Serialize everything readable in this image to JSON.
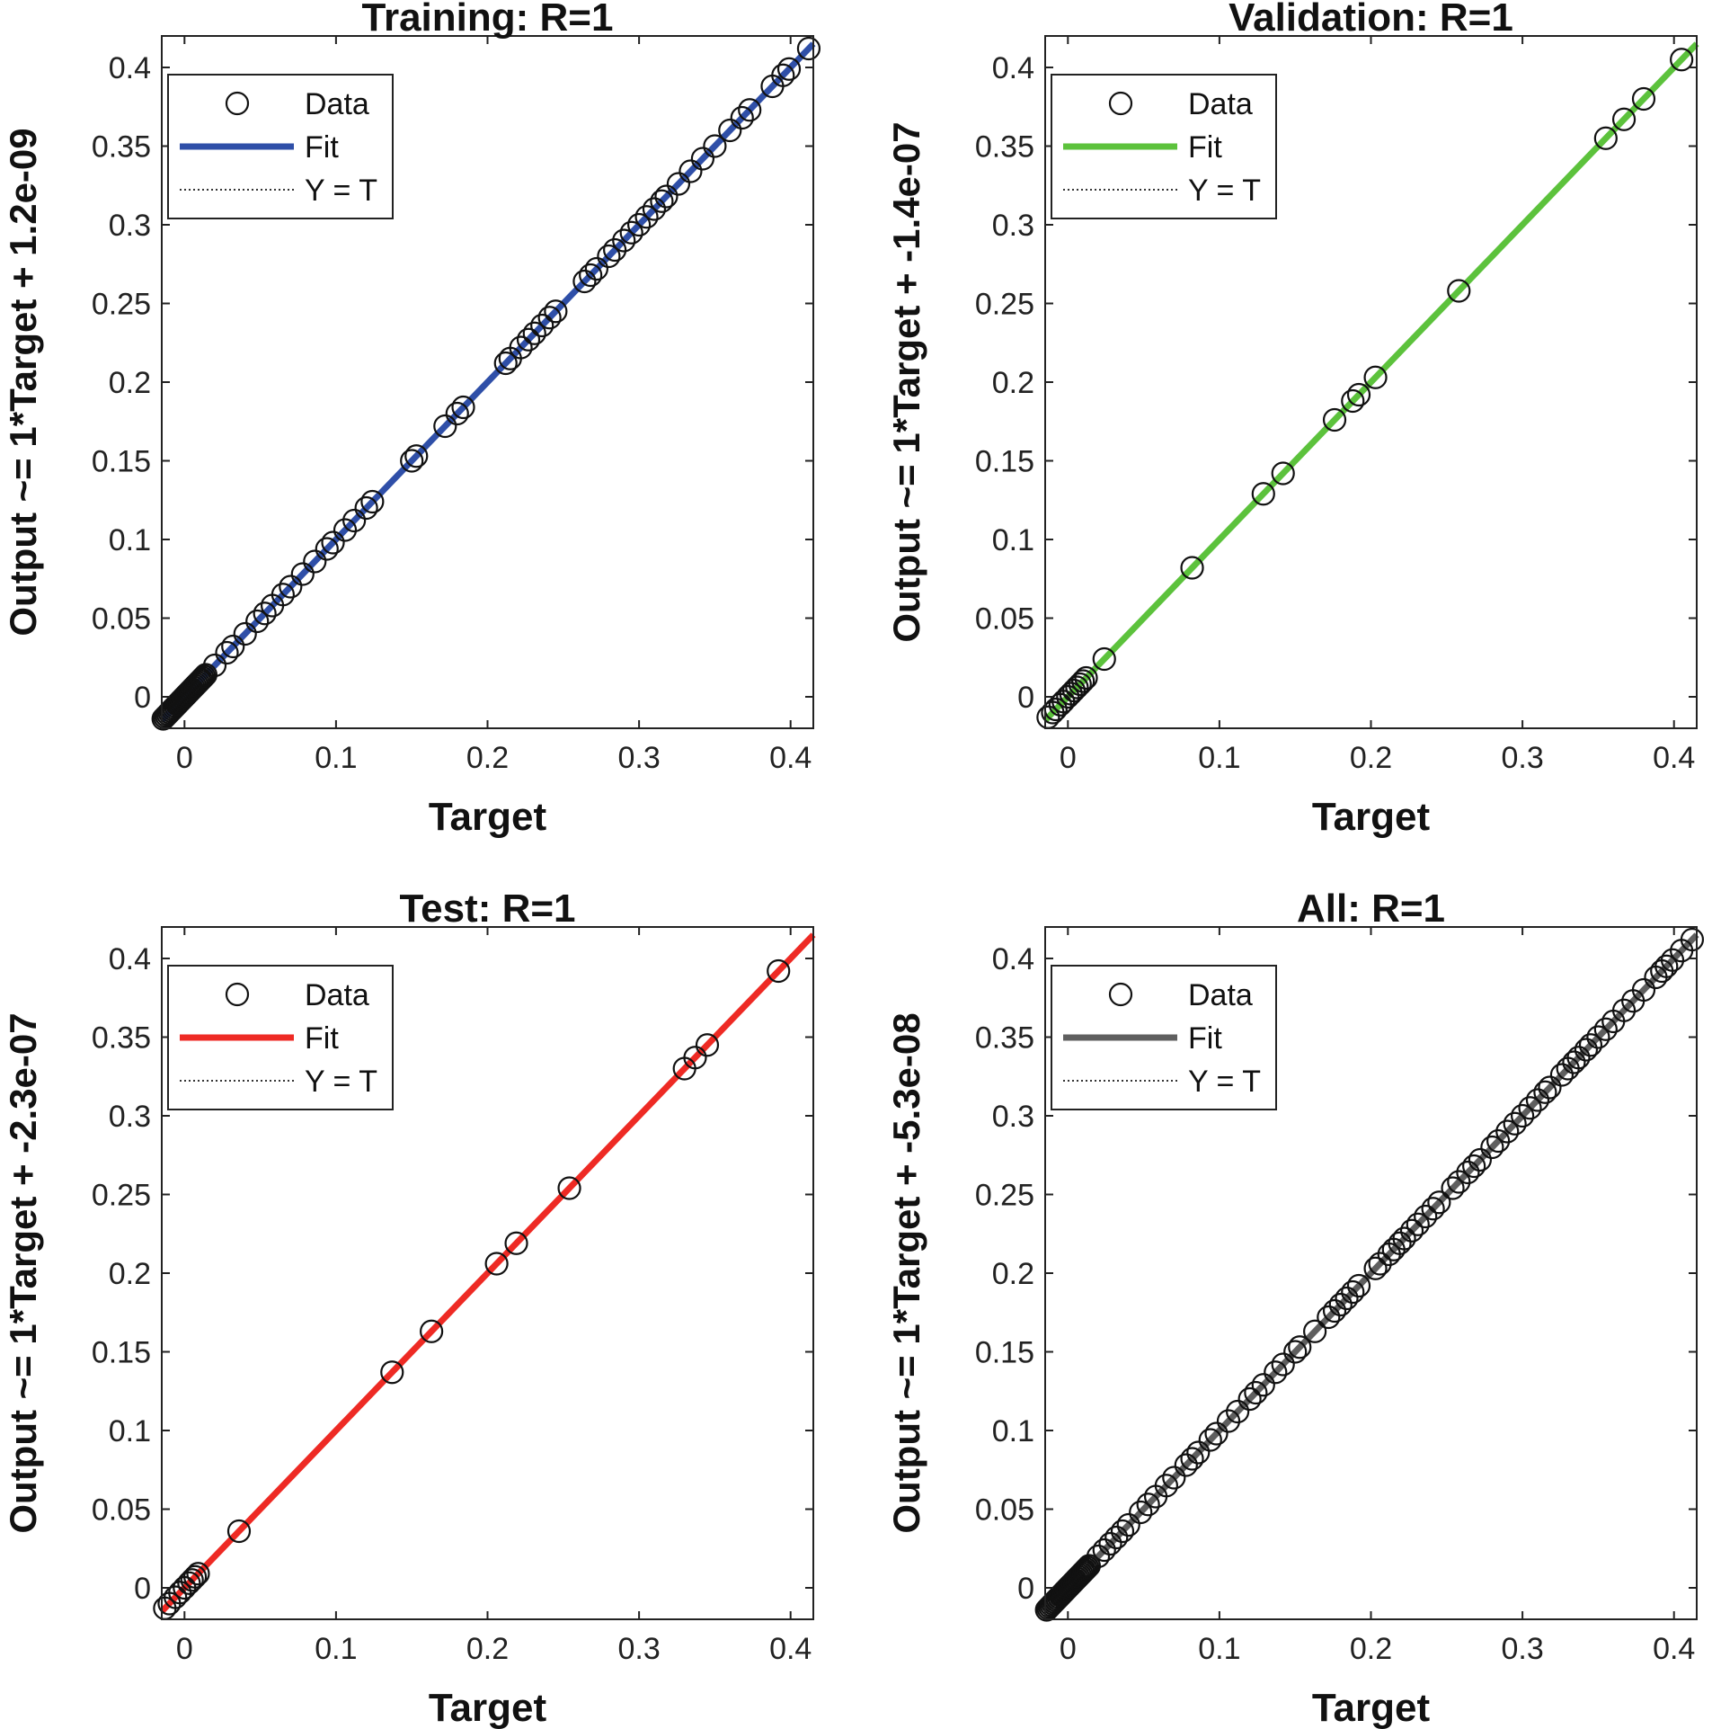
{
  "colors": {
    "training": "#2f4fa8",
    "validation": "#5cc23c",
    "test": "#ee2a24",
    "all": "#5f5f5f",
    "marker": "#111111",
    "axis": "#222222"
  },
  "legend_labels": {
    "data": "Data",
    "fit": "Fit",
    "identity": "Y = T"
  },
  "chart_data": [
    {
      "type": "scatter",
      "key": "training",
      "title": "Training: R=1",
      "xlabel": "Target",
      "ylabel": "Output ~= 1*Target + 1.2e-09",
      "xlim": [
        -0.015,
        0.415
      ],
      "ylim": [
        -0.02,
        0.42
      ],
      "xticks": [
        0,
        0.1,
        0.2,
        0.3,
        0.4
      ],
      "xtick_labels": [
        "0",
        "0.1",
        "0.2",
        "0.3",
        "0.4"
      ],
      "yticks": [
        0,
        0.05,
        0.1,
        0.15,
        0.2,
        0.25,
        0.3,
        0.35,
        0.4
      ],
      "ytick_labels": [
        "0",
        "0.05",
        "0.1",
        "0.15",
        "0.2",
        "0.25",
        "0.3",
        "0.35",
        "0.4"
      ],
      "fit": {
        "slope": 1,
        "intercept": 0
      },
      "points": [
        -0.014,
        -0.013,
        -0.012,
        -0.011,
        -0.01,
        -0.009,
        -0.008,
        -0.007,
        -0.006,
        -0.005,
        -0.004,
        -0.003,
        -0.002,
        -0.001,
        0,
        0.001,
        0.002,
        0.003,
        0.004,
        0.005,
        0.006,
        0.007,
        0.008,
        0.009,
        0.01,
        0.011,
        0.012,
        0.013,
        0.014,
        0.02,
        0.028,
        0.032,
        0.04,
        0.048,
        0.053,
        0.058,
        0.065,
        0.07,
        0.078,
        0.086,
        0.094,
        0.098,
        0.106,
        0.112,
        0.12,
        0.124,
        0.15,
        0.153,
        0.172,
        0.18,
        0.184,
        0.212,
        0.215,
        0.222,
        0.227,
        0.231,
        0.236,
        0.241,
        0.245,
        0.264,
        0.268,
        0.272,
        0.28,
        0.284,
        0.29,
        0.295,
        0.3,
        0.305,
        0.31,
        0.315,
        0.318,
        0.326,
        0.334,
        0.342,
        0.35,
        0.36,
        0.368,
        0.373,
        0.388,
        0.395,
        0.399,
        0.412
      ]
    },
    {
      "type": "scatter",
      "key": "validation",
      "title": "Validation: R=1",
      "xlabel": "Target",
      "ylabel": "Output ~= 1*Target + -1.4e-07",
      "xlim": [
        -0.015,
        0.415
      ],
      "ylim": [
        -0.02,
        0.42
      ],
      "xticks": [
        0,
        0.1,
        0.2,
        0.3,
        0.4
      ],
      "xtick_labels": [
        "0",
        "0.1",
        "0.2",
        "0.3",
        "0.4"
      ],
      "yticks": [
        0,
        0.05,
        0.1,
        0.15,
        0.2,
        0.25,
        0.3,
        0.35,
        0.4
      ],
      "ytick_labels": [
        "0",
        "0.05",
        "0.1",
        "0.15",
        "0.2",
        "0.25",
        "0.3",
        "0.35",
        "0.4"
      ],
      "fit": {
        "slope": 1,
        "intercept": 0
      },
      "points": [
        -0.013,
        -0.01,
        -0.008,
        -0.005,
        -0.003,
        0,
        0.002,
        0.004,
        0.006,
        0.008,
        0.01,
        0.012,
        0.024,
        0.082,
        0.129,
        0.142,
        0.176,
        0.188,
        0.192,
        0.203,
        0.258,
        0.355,
        0.367,
        0.38,
        0.405
      ]
    },
    {
      "type": "scatter",
      "key": "test",
      "title": "Test: R=1",
      "xlabel": "Target",
      "ylabel": "Output ~= 1*Target + -2.3e-07",
      "xlim": [
        -0.015,
        0.415
      ],
      "ylim": [
        -0.02,
        0.42
      ],
      "xticks": [
        0,
        0.1,
        0.2,
        0.3,
        0.4
      ],
      "xtick_labels": [
        "0",
        "0.1",
        "0.2",
        "0.3",
        "0.4"
      ],
      "yticks": [
        0,
        0.05,
        0.1,
        0.15,
        0.2,
        0.25,
        0.3,
        0.35,
        0.4
      ],
      "ytick_labels": [
        "0",
        "0.05",
        "0.1",
        "0.15",
        "0.2",
        "0.25",
        "0.3",
        "0.35",
        "0.4"
      ],
      "fit": {
        "slope": 1,
        "intercept": 0
      },
      "points": [
        -0.013,
        -0.01,
        -0.006,
        -0.003,
        0,
        0.003,
        0.005,
        0.007,
        0.009,
        0.036,
        0.137,
        0.163,
        0.206,
        0.219,
        0.254,
        0.33,
        0.337,
        0.345,
        0.392
      ]
    },
    {
      "type": "scatter",
      "key": "all",
      "title": "All: R=1",
      "xlabel": "Target",
      "ylabel": "Output ~= 1*Target + -5.3e-08",
      "xlim": [
        -0.015,
        0.415
      ],
      "ylim": [
        -0.02,
        0.42
      ],
      "xticks": [
        0,
        0.1,
        0.2,
        0.3,
        0.4
      ],
      "xtick_labels": [
        "0",
        "0.1",
        "0.2",
        "0.3",
        "0.4"
      ],
      "yticks": [
        0,
        0.05,
        0.1,
        0.15,
        0.2,
        0.25,
        0.3,
        0.35,
        0.4
      ],
      "ytick_labels": [
        "0",
        "0.05",
        "0.1",
        "0.15",
        "0.2",
        "0.25",
        "0.3",
        "0.35",
        "0.4"
      ],
      "fit": {
        "slope": 1,
        "intercept": 0
      },
      "points": [
        -0.014,
        -0.013,
        -0.012,
        -0.011,
        -0.01,
        -0.009,
        -0.008,
        -0.007,
        -0.006,
        -0.005,
        -0.004,
        -0.003,
        -0.002,
        -0.001,
        0,
        0.001,
        0.002,
        0.003,
        0.004,
        0.005,
        0.006,
        0.007,
        0.008,
        0.009,
        0.01,
        0.011,
        0.012,
        0.013,
        0.014,
        0.02,
        0.024,
        0.028,
        0.032,
        0.036,
        0.04,
        0.048,
        0.053,
        0.058,
        0.065,
        0.07,
        0.078,
        0.082,
        0.086,
        0.094,
        0.098,
        0.106,
        0.112,
        0.12,
        0.124,
        0.129,
        0.137,
        0.142,
        0.15,
        0.153,
        0.163,
        0.172,
        0.176,
        0.18,
        0.184,
        0.188,
        0.192,
        0.203,
        0.206,
        0.212,
        0.215,
        0.219,
        0.222,
        0.227,
        0.231,
        0.236,
        0.241,
        0.245,
        0.254,
        0.258,
        0.264,
        0.268,
        0.272,
        0.28,
        0.284,
        0.29,
        0.295,
        0.3,
        0.305,
        0.31,
        0.315,
        0.318,
        0.326,
        0.33,
        0.334,
        0.337,
        0.342,
        0.345,
        0.35,
        0.355,
        0.36,
        0.367,
        0.373,
        0.38,
        0.388,
        0.392,
        0.395,
        0.399,
        0.405,
        0.412
      ]
    }
  ]
}
